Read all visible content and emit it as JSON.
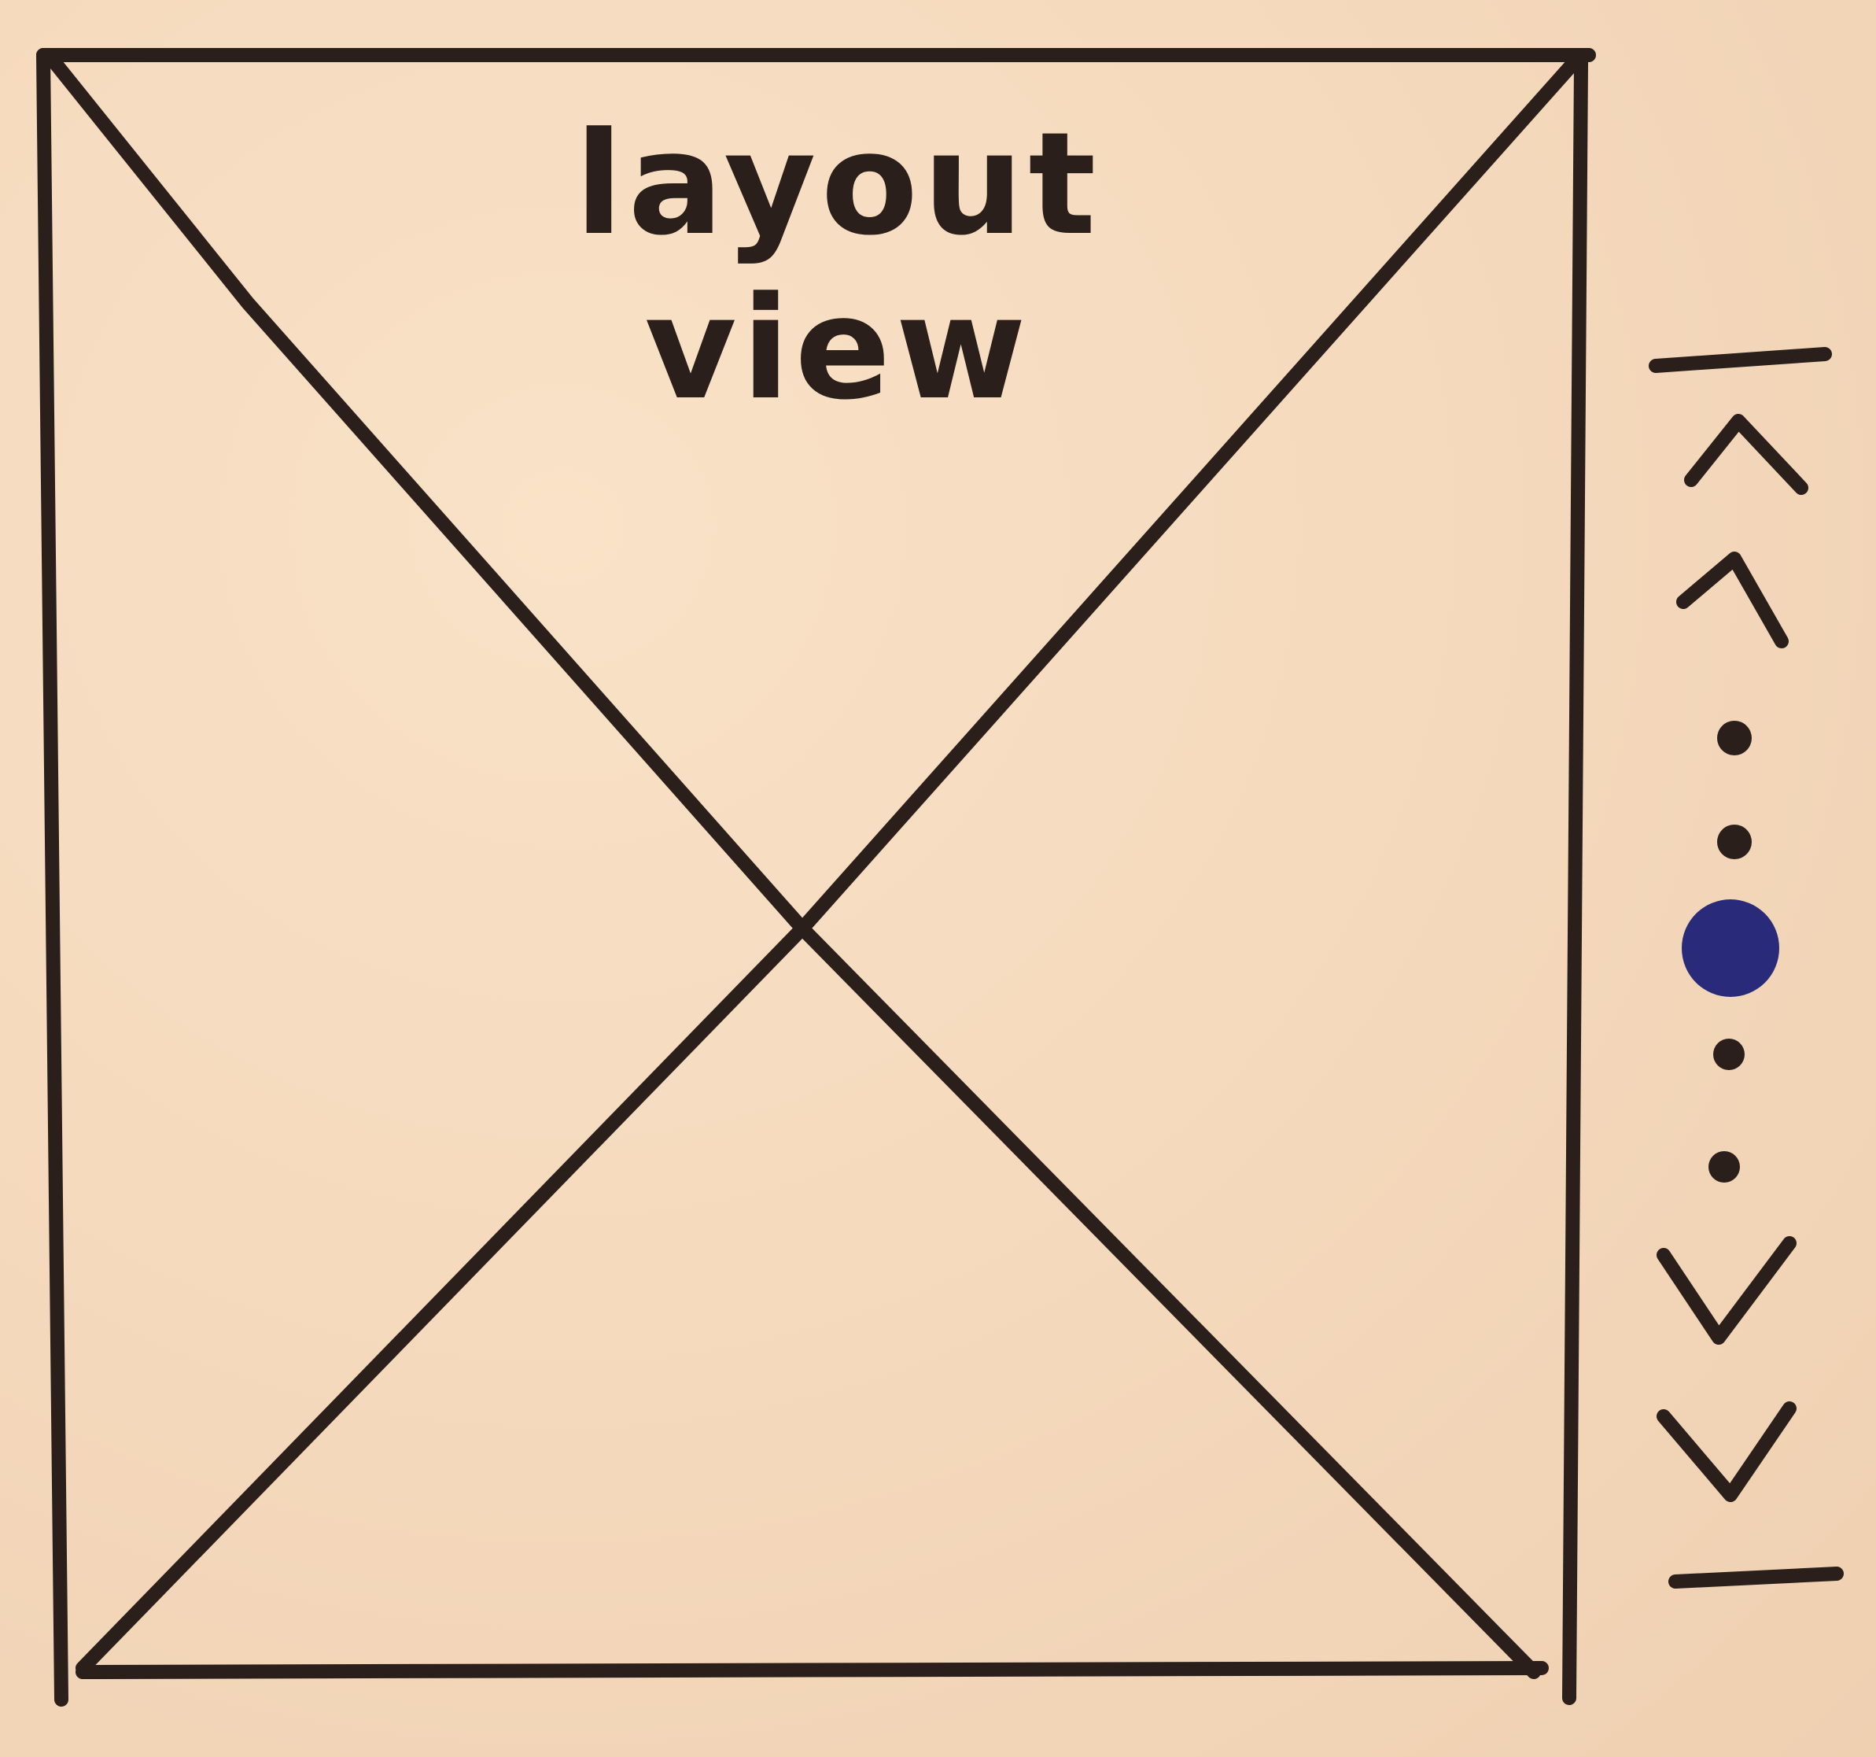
{
  "layout_view": {
    "label": "layout view"
  },
  "pager": {
    "icons": [
      "first-page-icon",
      "previous-page-icon",
      "page-dot-icon",
      "page-dot-icon",
      "page-dot-icon",
      "page-dot-icon",
      "page-dot-icon",
      "next-page-icon",
      "last-page-icon"
    ],
    "page_count": 5,
    "current_page": 3,
    "dot_color": "#2a1f1a",
    "active_dot_color": "#2a2a7a"
  },
  "colors": {
    "paper": "#f6dcc0",
    "ink": "#2a1f1a"
  }
}
